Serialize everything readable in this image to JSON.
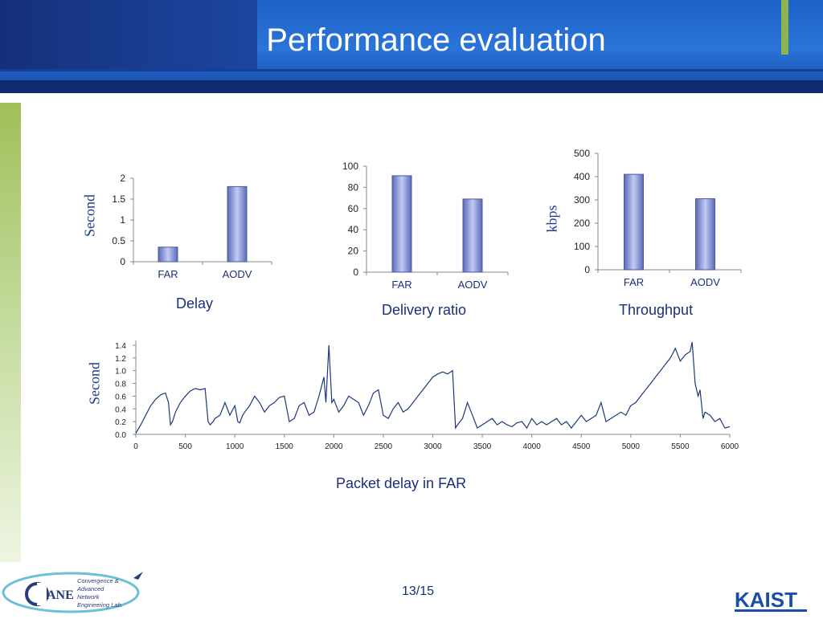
{
  "slide": {
    "title": "Performance evaluation",
    "page_number": "13/15",
    "colors": {
      "header_blue": "#2a74d8",
      "header_dark": "#15307a",
      "accent_green": "#8db54a",
      "bar_fill": "#7f8fd8",
      "line_color": "#1c3a7a"
    }
  },
  "footer": {
    "logo_text": "ANE",
    "logo_lines": [
      "Convergence &",
      "Advanced",
      "Network",
      "Engineering Lab."
    ],
    "kaist_logo": "KAIST"
  },
  "chart_data": [
    {
      "type": "bar",
      "title": "",
      "caption": "Delay",
      "ylabel": "Second",
      "categories": [
        "FAR",
        "AODV"
      ],
      "values": [
        0.35,
        1.8
      ],
      "ylim": [
        0,
        2
      ],
      "yticks": [
        "0",
        "0.5",
        "1",
        "1.5",
        "2"
      ]
    },
    {
      "type": "bar",
      "title": "",
      "caption": "Delivery ratio",
      "ylabel": "",
      "categories": [
        "FAR",
        "AODV"
      ],
      "values": [
        91,
        69
      ],
      "ylim": [
        0,
        100
      ],
      "yticks": [
        "0",
        "20",
        "40",
        "60",
        "80",
        "100"
      ]
    },
    {
      "type": "bar",
      "title": "",
      "caption": "Throughput",
      "ylabel": "kbps",
      "categories": [
        "FAR",
        "AODV"
      ],
      "values": [
        410,
        305
      ],
      "ylim": [
        0,
        500
      ],
      "yticks": [
        "0",
        "100",
        "200",
        "300",
        "400",
        "500"
      ]
    },
    {
      "type": "line",
      "title": "",
      "caption": "Packet delay in FAR",
      "ylabel": "Second",
      "xlim": [
        0,
        6000
      ],
      "ylim": [
        0,
        1.4
      ],
      "xticks": [
        "0",
        "500",
        "1000",
        "1500",
        "2000",
        "2500",
        "3000",
        "3500",
        "4000",
        "4500",
        "5000",
        "5500",
        "6000"
      ],
      "yticks": [
        "0.0",
        "0.2",
        "0.4",
        "0.6",
        "0.8",
        "1.0",
        "1.2",
        "1.4"
      ],
      "x": [
        0,
        50,
        100,
        150,
        200,
        250,
        300,
        330,
        350,
        370,
        400,
        450,
        500,
        550,
        600,
        650,
        700,
        730,
        750,
        780,
        800,
        850,
        900,
        950,
        1000,
        1030,
        1050,
        1080,
        1100,
        1150,
        1200,
        1250,
        1300,
        1350,
        1400,
        1450,
        1500,
        1550,
        1600,
        1650,
        1700,
        1750,
        1800,
        1850,
        1900,
        1920,
        1950,
        1980,
        2000,
        2050,
        2100,
        2150,
        2200,
        2250,
        2300,
        2350,
        2400,
        2450,
        2500,
        2550,
        2600,
        2650,
        2700,
        2750,
        2800,
        2850,
        2900,
        2950,
        3000,
        3050,
        3100,
        3150,
        3200,
        3230,
        3250,
        3300,
        3350,
        3400,
        3450,
        3500,
        3550,
        3600,
        3650,
        3700,
        3750,
        3800,
        3850,
        3900,
        3950,
        4000,
        4050,
        4100,
        4150,
        4200,
        4250,
        4300,
        4350,
        4400,
        4450,
        4500,
        4550,
        4600,
        4650,
        4700,
        4750,
        4800,
        4850,
        4900,
        4950,
        5000,
        5050,
        5100,
        5150,
        5200,
        5250,
        5300,
        5350,
        5400,
        5450,
        5500,
        5550,
        5600,
        5620,
        5650,
        5680,
        5700,
        5730,
        5750,
        5800,
        5850,
        5900,
        5950,
        6000
      ],
      "y": [
        0.02,
        0.15,
        0.3,
        0.45,
        0.55,
        0.62,
        0.65,
        0.5,
        0.15,
        0.2,
        0.35,
        0.5,
        0.6,
        0.68,
        0.72,
        0.7,
        0.72,
        0.2,
        0.15,
        0.2,
        0.25,
        0.3,
        0.5,
        0.3,
        0.45,
        0.2,
        0.18,
        0.3,
        0.35,
        0.45,
        0.6,
        0.5,
        0.35,
        0.45,
        0.5,
        0.58,
        0.6,
        0.2,
        0.25,
        0.45,
        0.5,
        0.3,
        0.35,
        0.6,
        0.9,
        0.5,
        1.4,
        0.5,
        0.55,
        0.35,
        0.45,
        0.6,
        0.55,
        0.5,
        0.3,
        0.45,
        0.65,
        0.7,
        0.3,
        0.25,
        0.4,
        0.5,
        0.35,
        0.4,
        0.5,
        0.6,
        0.7,
        0.8,
        0.9,
        0.95,
        0.98,
        0.95,
        1.0,
        0.1,
        0.15,
        0.25,
        0.5,
        0.3,
        0.1,
        0.15,
        0.2,
        0.25,
        0.15,
        0.2,
        0.15,
        0.12,
        0.18,
        0.2,
        0.1,
        0.25,
        0.15,
        0.2,
        0.15,
        0.2,
        0.25,
        0.15,
        0.2,
        0.1,
        0.2,
        0.3,
        0.2,
        0.25,
        0.3,
        0.5,
        0.2,
        0.25,
        0.3,
        0.35,
        0.3,
        0.45,
        0.5,
        0.6,
        0.7,
        0.8,
        0.9,
        1.0,
        1.1,
        1.2,
        1.35,
        1.15,
        1.25,
        1.3,
        1.45,
        0.8,
        0.6,
        0.7,
        0.25,
        0.35,
        0.3,
        0.2,
        0.25,
        0.1,
        0.12
      ]
    }
  ]
}
